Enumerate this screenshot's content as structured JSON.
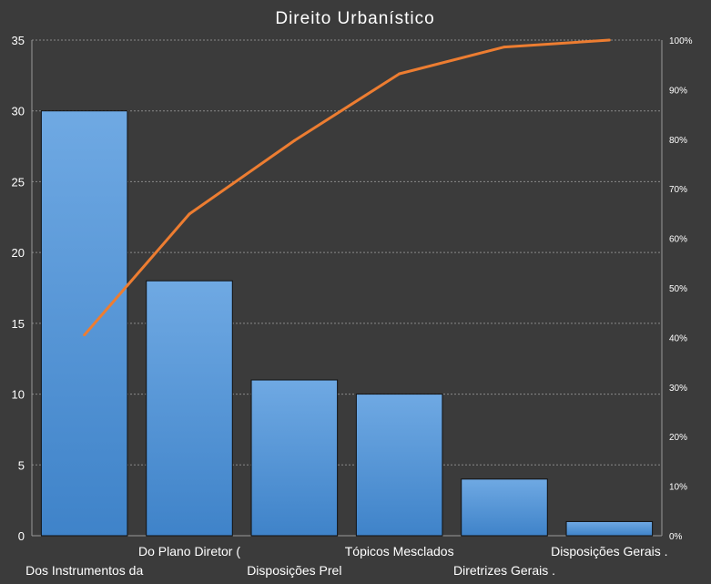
{
  "chart_data": {
    "type": "bar",
    "title": "Direito Urbanístico",
    "categories": [
      "Dos Instrumentos  da",
      "Do Plano Diretor (",
      "Disposições Prel",
      "Tópicos Mesclados",
      "Diretrizes Gerais .",
      "Disposições Gerais ."
    ],
    "series": [
      {
        "type": "bar",
        "axis": "left",
        "values": [
          30,
          18,
          11,
          10,
          4,
          1
        ]
      },
      {
        "type": "line",
        "axis": "right",
        "values": [
          40.5,
          64.9,
          79.7,
          93.2,
          98.6,
          100
        ]
      }
    ],
    "ylim": [
      0,
      35
    ],
    "yticks": [
      "0",
      "5",
      "10",
      "15",
      "20",
      "25",
      "30",
      "35"
    ],
    "y2lim": [
      0,
      100
    ],
    "y2ticks": [
      "0%",
      "10%",
      "20%",
      "30%",
      "40%",
      "50%",
      "60%",
      "70%",
      "80%",
      "90%",
      "100%"
    ],
    "grid": true,
    "legend": "none",
    "colors": {
      "bar": "#5b9bd5",
      "line": "#ed7d31",
      "background": "#3b3b3b"
    }
  }
}
